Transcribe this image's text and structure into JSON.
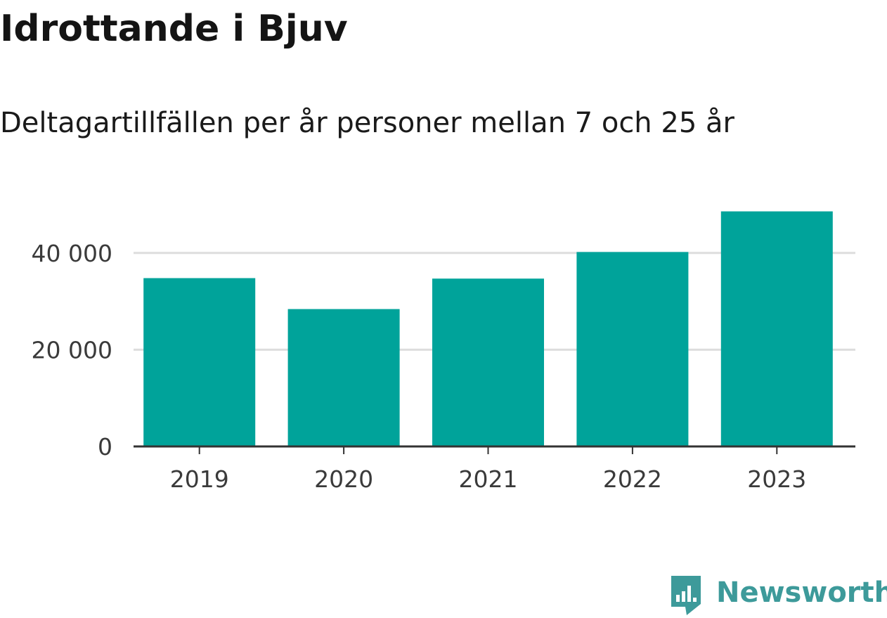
{
  "header": {
    "title": "Idrottande i Bjuv",
    "subtitle": "Deltagartillfällen per år personer mellan 7 och 25 år"
  },
  "branding": {
    "name": "Newsworthy",
    "logo_icon": "newsworthy-bar-chart-icon",
    "color": "#3d9a9a"
  },
  "colors": {
    "bar": "#00a39a",
    "grid": "#dddddd",
    "axis": "#333333"
  },
  "chart_data": {
    "type": "bar",
    "title": "Idrottande i Bjuv",
    "subtitle": "Deltagartillfällen per år personer mellan 7 och 25 år",
    "xlabel": "",
    "ylabel": "",
    "categories": [
      "2019",
      "2020",
      "2021",
      "2022",
      "2023"
    ],
    "values": [
      34800,
      28400,
      34700,
      40200,
      48600
    ],
    "ylim": [
      0,
      50000
    ],
    "yticks": [
      0,
      20000,
      40000
    ],
    "ytick_labels": [
      "0",
      "20 000",
      "40 000"
    ],
    "grid": true,
    "legend": "none"
  }
}
